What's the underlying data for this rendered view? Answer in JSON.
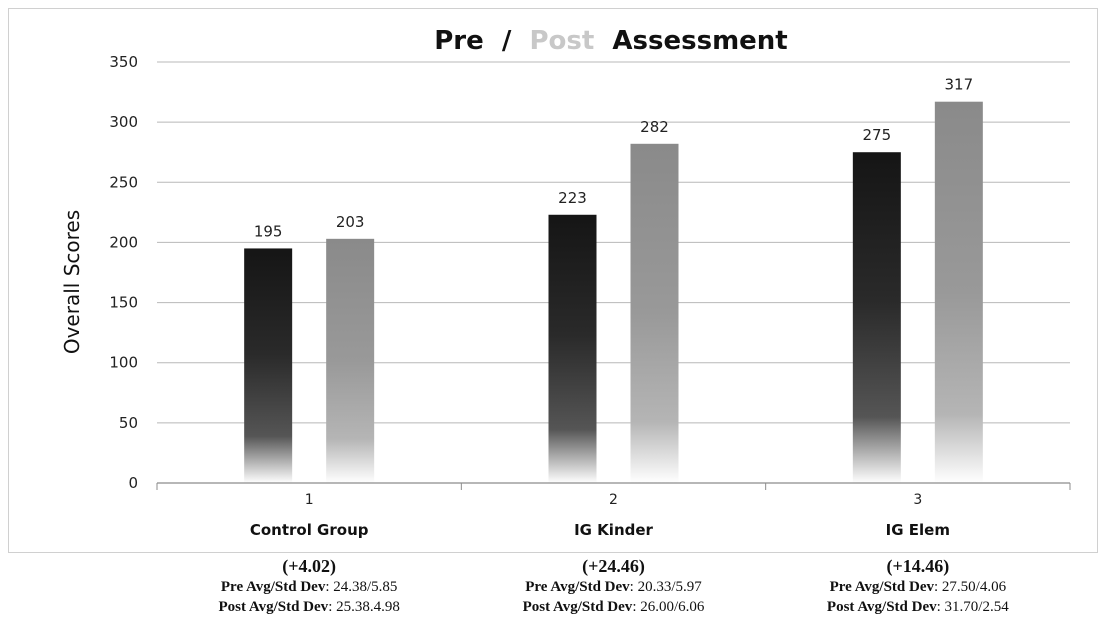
{
  "chart_data": {
    "type": "bar",
    "title_parts": [
      {
        "text": "Pre",
        "color": "#111111"
      },
      {
        "text": "/",
        "color": "#111111"
      },
      {
        "text": "Post",
        "color": "#c8c8c8"
      },
      {
        "text": "Assessment",
        "color": "#111111"
      }
    ],
    "ylabel": "Overall Scores",
    "ylim": [
      0,
      350
    ],
    "yticks": [
      0,
      50,
      100,
      150,
      200,
      250,
      300,
      350
    ],
    "grid": true,
    "categories": [
      {
        "index": "1",
        "name": "Control Group"
      },
      {
        "index": "2",
        "name": "IG Kinder"
      },
      {
        "index": "3",
        "name": "IG Elem"
      }
    ],
    "series": [
      {
        "key": "pre",
        "values": [
          195,
          223,
          275
        ],
        "color": "#151515"
      },
      {
        "key": "post",
        "values": [
          203,
          282,
          317
        ],
        "color": "#8a8a8a"
      }
    ]
  },
  "stats": [
    {
      "change": "(+4.02)",
      "pre_label": "Pre Avg/Std Dev",
      "pre_value": ": 24.38/5.85",
      "post_label": "Post Avg/Std Dev",
      "post_value": ": 25.38.4.98"
    },
    {
      "change": "(+24.46)",
      "pre_label": "Pre Avg/Std Dev",
      "pre_value": ": 20.33/5.97",
      "post_label": "Post Avg/Std Dev",
      "post_value": ": 26.00/6.06"
    },
    {
      "change": "(+14.46)",
      "pre_label": "Pre Avg/Std Dev",
      "pre_value": ": 27.50/4.06",
      "post_label": "Post Avg/Std Dev",
      "post_value": ": 31.70/2.54"
    }
  ]
}
